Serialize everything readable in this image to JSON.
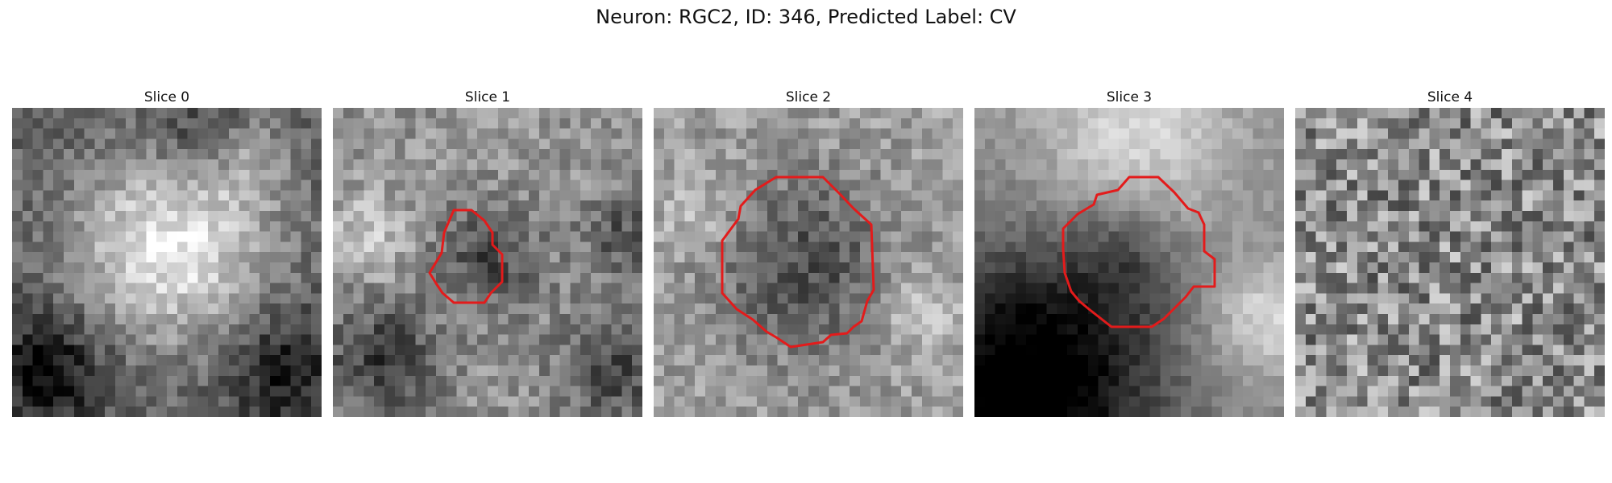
{
  "figure": {
    "title": "Neuron: RGC2, ID: 346, Predicted Label: CV"
  },
  "panels": [
    {
      "title": "Slice 0",
      "has_contour": false
    },
    {
      "title": "Slice 1",
      "has_contour": true
    },
    {
      "title": "Slice 2",
      "has_contour": true
    },
    {
      "title": "Slice 3",
      "has_contour": true
    },
    {
      "title": "Slice 4",
      "has_contour": false
    }
  ],
  "colors": {
    "contour": "#e31b1b",
    "background": "#ffffff"
  }
}
